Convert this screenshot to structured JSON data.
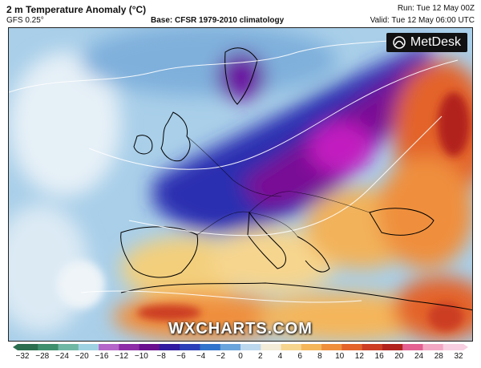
{
  "header": {
    "title": "2 m Temperature Anomaly (°C)",
    "model": "GFS 0.25°",
    "base": "Base: CFSR 1979-2010 climatology",
    "run": "Run: Tue 12 May 00Z",
    "valid": "Valid: Tue 12 May 06:00 UTC"
  },
  "branding": {
    "logo_text": "MetDesk",
    "watermark": "WXCHARTS.COM"
  },
  "legend": {
    "ticks": [
      "−32",
      "−28",
      "−24",
      "−20",
      "−16",
      "−12",
      "−10",
      "−8",
      "−6",
      "−4",
      "−2",
      "0",
      "2",
      "4",
      "6",
      "8",
      "10",
      "12",
      "16",
      "20",
      "24",
      "28",
      "32"
    ],
    "colors": [
      "#2b6e4f",
      "#3e8f6e",
      "#6fb7a5",
      "#9fd3e3",
      "#b566c9",
      "#8d2ca6",
      "#6a0f8e",
      "#2f1aa0",
      "#2b3fb8",
      "#2f73cc",
      "#6aa4dc",
      "#bcd8ef",
      "#f2ecd8",
      "#f6d58e",
      "#f5b65a",
      "#ef8f3c",
      "#e3632a",
      "#cc3d24",
      "#b2221d",
      "#e36090",
      "#f3a7c3",
      "#f7cfe0"
    ]
  },
  "map": {
    "icons": [
      "metdesk-logo-icon"
    ],
    "coastline_color": "#000000",
    "contour_color": "#ffffff"
  }
}
